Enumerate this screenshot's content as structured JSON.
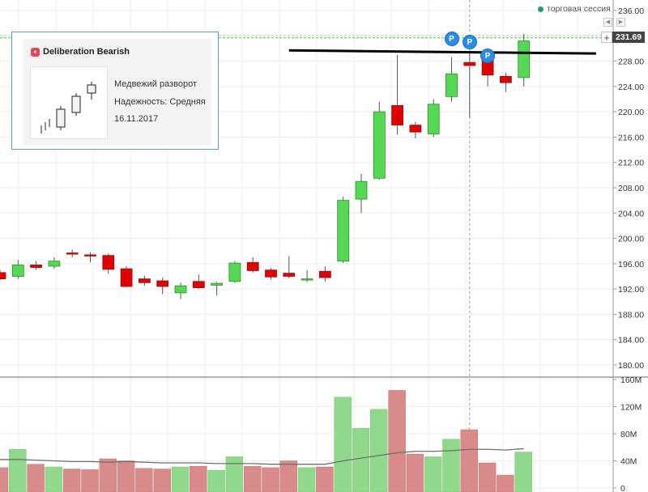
{
  "header": {
    "session_label": "торговая сессия",
    "current_price": "231.69",
    "add_icon": "plus-icon",
    "scroll_icons": [
      "chevron-left-icon",
      "chevron-right-icon"
    ]
  },
  "pattern": {
    "title": "Deliberation Bearish",
    "icon": "bear-icon",
    "lines": [
      "Медвежий разворот",
      "Надежность: Средняя",
      "16.11.2017"
    ]
  },
  "markers": [
    {
      "label": "P",
      "index": 25
    },
    {
      "label": "P",
      "index": 26
    },
    {
      "label": "P",
      "index": 27
    }
  ],
  "colors": {
    "up": "#55d955",
    "down": "#e00000",
    "volume_up": "#90d88c",
    "volume_down": "#d98a8a",
    "volume_ma": "#707070",
    "trend_line": "#000000",
    "price_line": "#3ccf3c"
  },
  "chart_data": [
    {
      "type": "candlestick",
      "ylim": [
        178,
        236
      ],
      "yticks": [
        "236.00",
        "232.00",
        "228.00",
        "224.00",
        "220.00",
        "216.00",
        "212.00",
        "208.00",
        "204.00",
        "200.00",
        "196.00",
        "192.00",
        "188.00",
        "184.00",
        "180.00"
      ],
      "ytick_values": [
        236,
        232,
        228,
        224,
        220,
        216,
        212,
        208,
        204,
        200,
        196,
        192,
        188,
        184,
        180
      ],
      "candles": [
        {
          "o": 194.6,
          "h": 195.0,
          "l": 193.4,
          "c": 193.6
        },
        {
          "o": 194.0,
          "h": 196.6,
          "l": 193.6,
          "c": 195.8
        },
        {
          "o": 195.8,
          "h": 196.4,
          "l": 195.0,
          "c": 195.4
        },
        {
          "o": 195.6,
          "h": 197.0,
          "l": 195.2,
          "c": 196.4
        },
        {
          "o": 197.7,
          "h": 198.2,
          "l": 197.0,
          "c": 197.5
        },
        {
          "o": 197.4,
          "h": 197.8,
          "l": 196.2,
          "c": 197.2
        },
        {
          "o": 197.3,
          "h": 197.6,
          "l": 194.4,
          "c": 195.1
        },
        {
          "o": 195.2,
          "h": 195.6,
          "l": 192.3,
          "c": 192.4
        },
        {
          "o": 193.6,
          "h": 194.1,
          "l": 192.5,
          "c": 193.0
        },
        {
          "o": 193.3,
          "h": 193.8,
          "l": 191.2,
          "c": 192.4
        },
        {
          "o": 191.4,
          "h": 193.0,
          "l": 190.4,
          "c": 192.5
        },
        {
          "o": 193.2,
          "h": 194.3,
          "l": 192.0,
          "c": 192.2
        },
        {
          "o": 192.6,
          "h": 193.1,
          "l": 191.0,
          "c": 192.9
        },
        {
          "o": 193.2,
          "h": 196.4,
          "l": 193.0,
          "c": 196.1
        },
        {
          "o": 196.2,
          "h": 197.0,
          "l": 194.6,
          "c": 194.9
        },
        {
          "o": 195.0,
          "h": 195.3,
          "l": 193.5,
          "c": 193.9
        },
        {
          "o": 194.5,
          "h": 197.2,
          "l": 193.7,
          "c": 194.0
        },
        {
          "o": 193.6,
          "h": 195.0,
          "l": 193.1,
          "c": 193.6
        },
        {
          "o": 194.8,
          "h": 195.6,
          "l": 193.2,
          "c": 193.8
        },
        {
          "o": 196.4,
          "h": 206.6,
          "l": 196.1,
          "c": 206.0
        },
        {
          "o": 206.2,
          "h": 210.2,
          "l": 204.0,
          "c": 209.0
        },
        {
          "o": 209.5,
          "h": 221.6,
          "l": 209.3,
          "c": 220.0
        },
        {
          "o": 221.0,
          "h": 229.0,
          "l": 216.4,
          "c": 217.9
        },
        {
          "o": 217.9,
          "h": 218.4,
          "l": 215.8,
          "c": 216.8
        },
        {
          "o": 216.5,
          "h": 222.0,
          "l": 216.0,
          "c": 221.2
        },
        {
          "o": 222.4,
          "h": 228.6,
          "l": 221.6,
          "c": 226.0
        },
        {
          "o": 227.8,
          "h": 229.2,
          "l": 219.1,
          "c": 227.3
        },
        {
          "o": 228.2,
          "h": 229.0,
          "l": 224.0,
          "c": 225.8
        },
        {
          "o": 225.6,
          "h": 226.2,
          "l": 223.1,
          "c": 224.6
        },
        {
          "o": 225.4,
          "h": 232.3,
          "l": 224.0,
          "c": 231.2
        }
      ],
      "current_price": 231.69,
      "trend_line": {
        "from": {
          "index": 16,
          "price": 229.7
        },
        "to": {
          "index": 33,
          "price": 229.2
        }
      }
    },
    {
      "type": "bar",
      "ylim": [
        0,
        160
      ],
      "yticks": [
        "160M",
        "120M",
        "80M",
        "40M",
        "0"
      ],
      "ytick_values": [
        160,
        120,
        80,
        40,
        0
      ],
      "unit": "M",
      "volumes": [
        30,
        57,
        35,
        31,
        28,
        27,
        43,
        40,
        29,
        28,
        31,
        32,
        26,
        46,
        32,
        30,
        40,
        30,
        31,
        134,
        88,
        116,
        144,
        50,
        46,
        72,
        86,
        37,
        19,
        53
      ],
      "moving_average": [
        42,
        42,
        41,
        40,
        39,
        39,
        38,
        39,
        38,
        37,
        37,
        37,
        36,
        36,
        36,
        35,
        35,
        35,
        35,
        40,
        44,
        48,
        52,
        54,
        54,
        55,
        57,
        57,
        56,
        58
      ]
    }
  ]
}
